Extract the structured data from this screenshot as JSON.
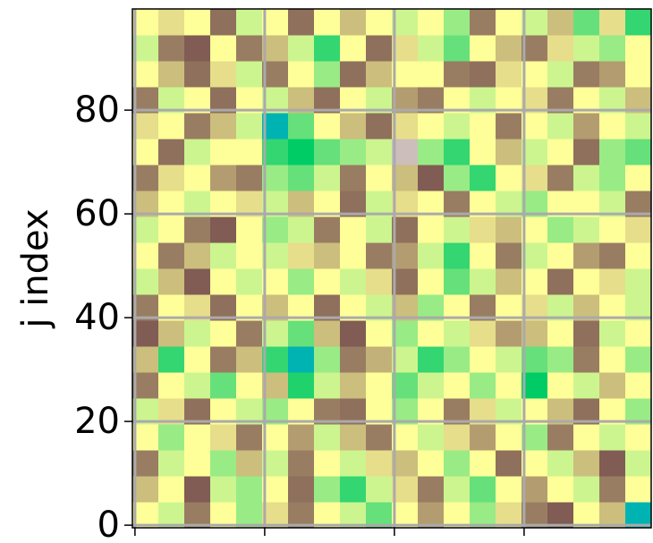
{
  "chart_data": {
    "type": "heatmap",
    "ylabel": "j index",
    "xlim": [
      -0.5,
      99.5
    ],
    "ylim": [
      -0.5,
      99.5
    ],
    "xticks": [
      0,
      25,
      50,
      75
    ],
    "yticks": [
      0,
      20,
      40,
      60,
      80
    ],
    "grid": true,
    "colormap": "terrain",
    "clim": [
      0,
      1
    ],
    "z": [
      [
        0.5,
        0.45,
        0.7,
        0.5,
        0.4,
        0.55,
        0.7,
        0.5,
        0.45,
        0.35,
        0.5,
        0.65,
        0.5,
        0.4,
        0.55,
        0.7,
        0.75,
        0.5,
        0.6,
        0.2
      ],
      [
        0.6,
        0.5,
        0.75,
        0.45,
        0.4,
        0.5,
        0.72,
        0.4,
        0.3,
        0.45,
        0.55,
        0.7,
        0.45,
        0.35,
        0.5,
        0.65,
        0.5,
        0.45,
        0.7,
        0.5
      ],
      [
        0.7,
        0.45,
        0.5,
        0.4,
        0.6,
        0.45,
        0.7,
        0.5,
        0.45,
        0.55,
        0.6,
        0.5,
        0.4,
        0.5,
        0.72,
        0.5,
        0.45,
        0.6,
        0.75,
        0.45
      ],
      [
        0.5,
        0.4,
        0.5,
        0.55,
        0.7,
        0.5,
        0.65,
        0.45,
        0.6,
        0.7,
        0.5,
        0.45,
        0.55,
        0.65,
        0.5,
        0.4,
        0.7,
        0.5,
        0.45,
        0.5
      ],
      [
        0.45,
        0.55,
        0.72,
        0.5,
        0.45,
        0.4,
        0.5,
        0.7,
        0.72,
        0.5,
        0.4,
        0.5,
        0.7,
        0.55,
        0.45,
        0.5,
        0.6,
        0.72,
        0.5,
        0.4
      ],
      [
        0.7,
        0.5,
        0.45,
        0.35,
        0.5,
        0.6,
        0.28,
        0.45,
        0.6,
        0.5,
        0.35,
        0.45,
        0.5,
        0.4,
        0.5,
        0.25,
        0.5,
        0.45,
        0.6,
        0.5
      ],
      [
        0.6,
        0.3,
        0.5,
        0.7,
        0.6,
        0.3,
        0.2,
        0.4,
        0.7,
        0.62,
        0.45,
        0.3,
        0.4,
        0.5,
        0.45,
        0.35,
        0.4,
        0.7,
        0.5,
        0.4
      ],
      [
        0.75,
        0.6,
        0.45,
        0.5,
        0.7,
        0.45,
        0.35,
        0.6,
        0.75,
        0.5,
        0.4,
        0.5,
        0.45,
        0.55,
        0.65,
        0.6,
        0.5,
        0.72,
        0.45,
        0.5
      ],
      [
        0.7,
        0.5,
        0.55,
        0.72,
        0.5,
        0.6,
        0.5,
        0.72,
        0.5,
        0.45,
        0.6,
        0.4,
        0.5,
        0.7,
        0.5,
        0.55,
        0.45,
        0.6,
        0.5,
        0.45
      ],
      [
        0.45,
        0.6,
        0.75,
        0.5,
        0.45,
        0.5,
        0.4,
        0.5,
        0.45,
        0.55,
        0.72,
        0.5,
        0.35,
        0.45,
        0.6,
        0.5,
        0.72,
        0.5,
        0.55,
        0.45
      ],
      [
        0.5,
        0.7,
        0.6,
        0.45,
        0.5,
        0.45,
        0.55,
        0.6,
        0.5,
        0.7,
        0.65,
        0.45,
        0.3,
        0.5,
        0.7,
        0.45,
        0.5,
        0.65,
        0.7,
        0.5
      ],
      [
        0.45,
        0.5,
        0.7,
        0.75,
        0.5,
        0.4,
        0.45,
        0.7,
        0.5,
        0.45,
        0.72,
        0.5,
        0.45,
        0.55,
        0.6,
        0.5,
        0.4,
        0.45,
        0.5,
        0.55
      ],
      [
        0.6,
        0.5,
        0.45,
        0.5,
        0.55,
        0.45,
        0.6,
        0.5,
        0.72,
        0.45,
        0.55,
        0.5,
        0.7,
        0.5,
        0.45,
        0.4,
        0.5,
        0.5,
        0.45,
        0.7
      ],
      [
        0.7,
        0.55,
        0.5,
        0.65,
        0.7,
        0.4,
        0.35,
        0.45,
        0.7,
        0.5,
        0.6,
        0.75,
        0.4,
        0.3,
        0.5,
        0.55,
        0.7,
        0.45,
        0.4,
        0.5
      ],
      [
        0.5,
        0.72,
        0.45,
        0.5,
        0.5,
        0.3,
        0.25,
        0.35,
        0.4,
        0.45,
        0.9,
        0.4,
        0.3,
        0.5,
        0.6,
        0.45,
        0.5,
        0.72,
        0.4,
        0.35
      ],
      [
        0.55,
        0.5,
        0.7,
        0.6,
        0.45,
        0.2,
        0.35,
        0.5,
        0.6,
        0.72,
        0.55,
        0.5,
        0.45,
        0.5,
        0.7,
        0.5,
        0.45,
        0.65,
        0.5,
        0.45
      ],
      [
        0.7,
        0.45,
        0.5,
        0.72,
        0.5,
        0.45,
        0.6,
        0.72,
        0.5,
        0.45,
        0.65,
        0.7,
        0.5,
        0.45,
        0.5,
        0.55,
        0.7,
        0.5,
        0.45,
        0.6
      ],
      [
        0.5,
        0.6,
        0.72,
        0.55,
        0.45,
        0.7,
        0.5,
        0.4,
        0.72,
        0.6,
        0.5,
        0.5,
        0.7,
        0.72,
        0.55,
        0.5,
        0.45,
        0.7,
        0.65,
        0.5
      ],
      [
        0.45,
        0.7,
        0.75,
        0.5,
        0.7,
        0.6,
        0.45,
        0.3,
        0.5,
        0.72,
        0.55,
        0.45,
        0.35,
        0.5,
        0.6,
        0.7,
        0.55,
        0.45,
        0.4,
        0.5
      ],
      [
        0.5,
        0.55,
        0.5,
        0.72,
        0.45,
        0.5,
        0.72,
        0.5,
        0.6,
        0.5,
        0.45,
        0.5,
        0.4,
        0.7,
        0.5,
        0.45,
        0.6,
        0.35,
        0.55,
        0.3
      ]
    ]
  }
}
